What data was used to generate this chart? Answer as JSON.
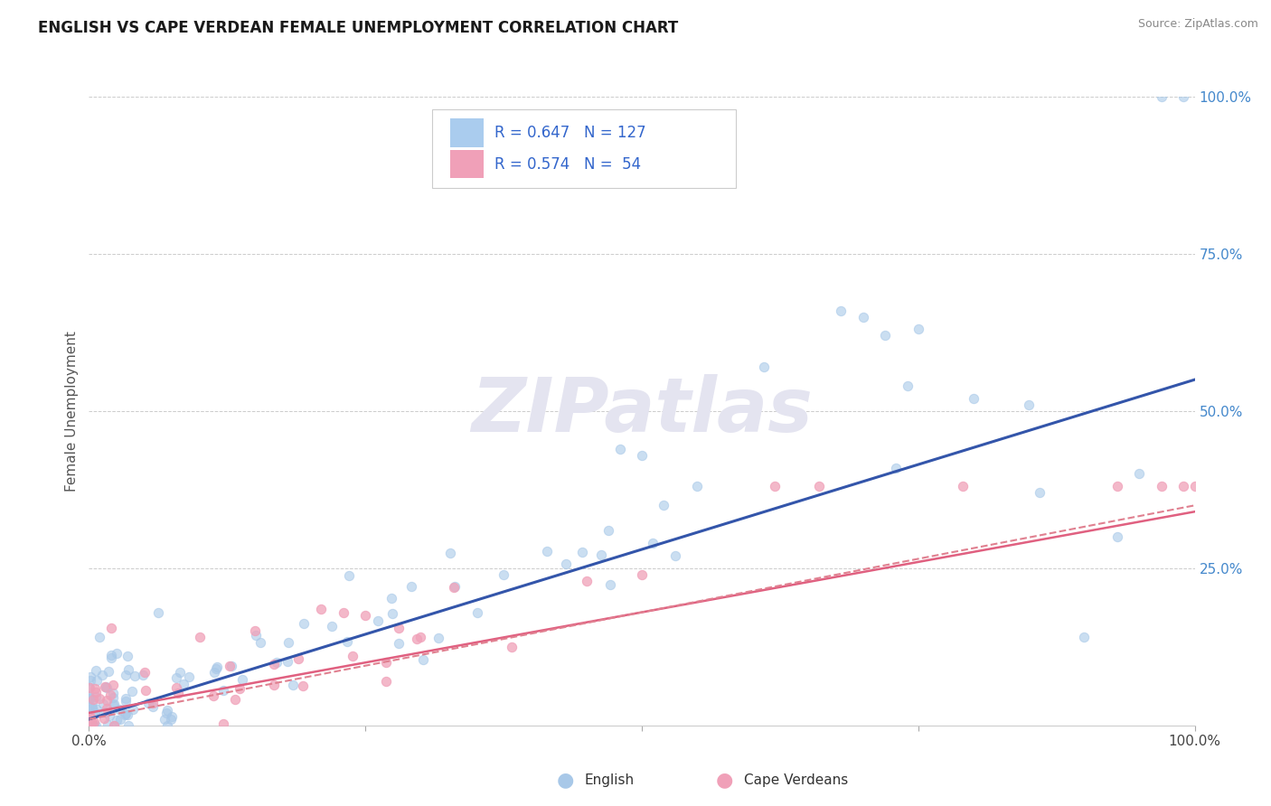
{
  "title": "ENGLISH VS CAPE VERDEAN FEMALE UNEMPLOYMENT CORRELATION CHART",
  "source": "Source: ZipAtlas.com",
  "ylabel": "Female Unemployment",
  "watermark": "ZIPatlas",
  "background_color": "#ffffff",
  "plot_bg_color": "#ffffff",
  "english": {
    "R": 0.647,
    "N": 127,
    "scatter_color": "#a8c8e8",
    "line_color": "#3355aa",
    "label": "English"
  },
  "cape_verdean": {
    "R": 0.574,
    "N": 54,
    "scatter_color": "#f0a0b8",
    "line_solid_color": "#e06080",
    "line_dash_color": "#e08090",
    "label": "Cape Verdeans"
  },
  "xlim": [
    0.0,
    1.0
  ],
  "ylim": [
    0.0,
    1.0
  ],
  "xticks": [
    0.0,
    0.25,
    0.5,
    0.75,
    1.0
  ],
  "xticklabels": [
    "0.0%",
    "",
    "",
    "",
    "100.0%"
  ],
  "ytick_right_vals": [
    0.25,
    0.5,
    0.75,
    1.0
  ],
  "ytick_right_labels": [
    "25.0%",
    "50.0%",
    "75.0%",
    "100.0%"
  ],
  "grid_color": "#cccccc",
  "watermark_color": "#e4e4f0",
  "legend_box_color_english": "#aaccee",
  "legend_box_color_cv": "#f0a0b8"
}
